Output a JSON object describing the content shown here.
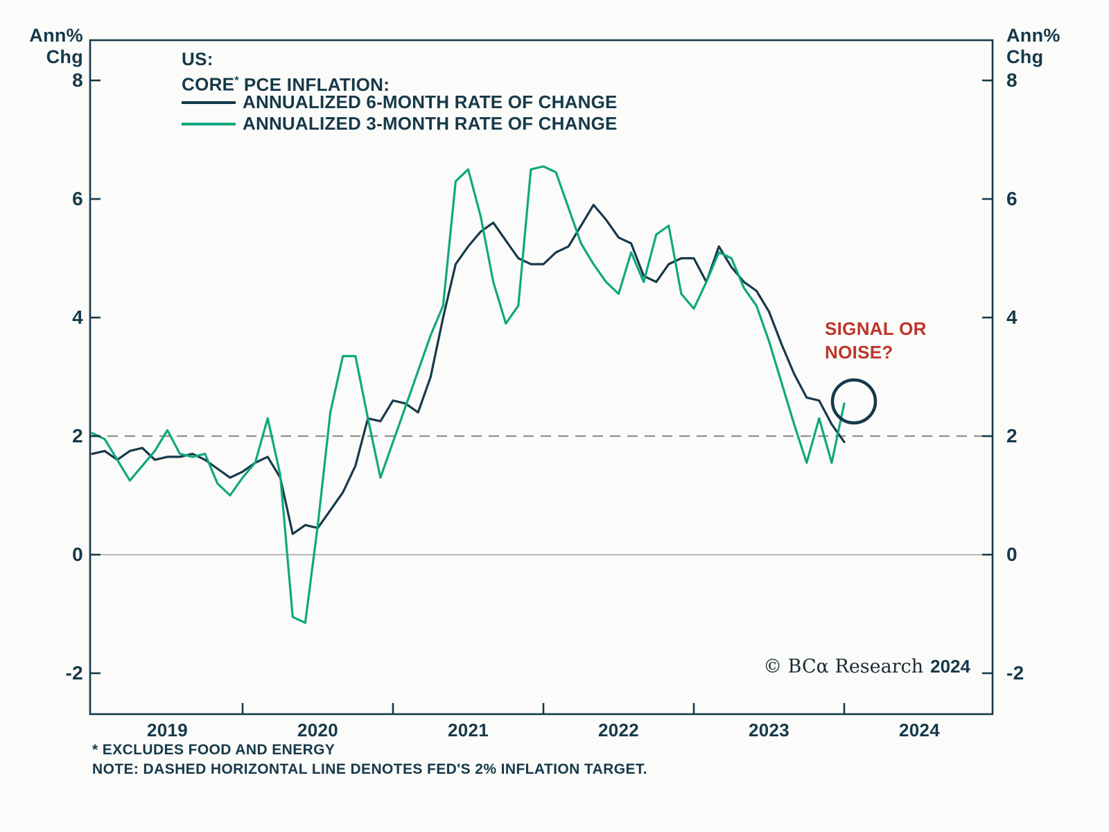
{
  "axis": {
    "unit_line1": "Ann%",
    "unit_line2": "Chg"
  },
  "legend": {
    "title_line1": "US:",
    "title_core": "CORE",
    "title_asterisk": "*",
    "title_rest": "PCE INFLATION:",
    "series1_label": "ANNUALIZED 6-MONTH RATE OF CHANGE",
    "series2_label": "ANNUALIZED 3-MONTH RATE OF CHANGE"
  },
  "annotation": {
    "text": "SIGNAL OR NOISE?",
    "color": "#BE342B"
  },
  "branding": {
    "copyright": "© BCα Research",
    "year": "2024"
  },
  "footnotes": {
    "line1": "* EXCLUDES FOOD AND ENERGY",
    "line2": "NOTE: DASHED HORIZONTAL LINE DENOTES FED'S 2% INFLATION TARGET."
  },
  "chart_data": {
    "type": "line",
    "title": "US: CORE PCE INFLATION",
    "x_start": "2019-01",
    "x_frequency": "monthly",
    "x_tick_years": [
      "2019",
      "2020",
      "2021",
      "2022",
      "2023",
      "2024"
    ],
    "x_year_boundary_month_indices": [
      12,
      24,
      36,
      48,
      60
    ],
    "yticks": [
      -2,
      0,
      2,
      4,
      6,
      8
    ],
    "ylim": [
      -2.7,
      8.7
    ],
    "y_unit": "Ann% Chg",
    "grid": false,
    "legend_position": "top-left-inside",
    "reference_lines": [
      {
        "y": 2,
        "style": "dashed",
        "meaning": "Fed's 2% inflation target"
      },
      {
        "y": 0,
        "style": "solid",
        "meaning": "zero baseline"
      }
    ],
    "series": [
      {
        "name": "ANNUALIZED 6-MONTH RATE OF CHANGE",
        "color": "#16394A",
        "values": [
          1.7,
          1.75,
          1.6,
          1.75,
          1.8,
          1.6,
          1.65,
          1.65,
          1.7,
          1.6,
          1.45,
          1.3,
          1.4,
          1.55,
          1.65,
          1.3,
          0.35,
          0.5,
          0.45,
          0.75,
          1.05,
          1.5,
          2.3,
          2.25,
          2.6,
          2.55,
          2.4,
          3.0,
          4.0,
          4.9,
          5.2,
          5.45,
          5.6,
          5.3,
          5.0,
          4.9,
          4.9,
          5.1,
          5.2,
          5.55,
          5.9,
          5.65,
          5.35,
          5.25,
          4.7,
          4.6,
          4.9,
          5.0,
          5.0,
          4.6,
          5.2,
          4.85,
          4.6,
          4.45,
          4.1,
          3.55,
          3.05,
          2.65,
          2.6,
          2.2,
          1.9
        ]
      },
      {
        "name": "ANNUALIZED 3-MONTH RATE OF CHANGE",
        "color": "#0FA87D",
        "values": [
          2.05,
          1.95,
          1.6,
          1.25,
          1.5,
          1.75,
          2.1,
          1.7,
          1.65,
          1.7,
          1.2,
          1.0,
          1.3,
          1.55,
          2.3,
          1.35,
          -1.05,
          -1.15,
          0.5,
          2.4,
          3.35,
          3.35,
          2.3,
          1.3,
          1.9,
          2.5,
          3.1,
          3.7,
          4.2,
          6.3,
          6.5,
          5.7,
          4.6,
          3.9,
          4.2,
          6.5,
          6.55,
          6.45,
          5.85,
          5.25,
          4.9,
          4.6,
          4.4,
          5.1,
          4.6,
          5.4,
          5.55,
          4.4,
          4.15,
          4.6,
          5.1,
          5.0,
          4.5,
          4.2,
          3.6,
          2.9,
          2.2,
          1.55,
          2.3,
          1.55,
          2.55
        ]
      }
    ],
    "annotation_circle": {
      "on_series": "ANNUALIZED 3-MONTH RATE OF CHANGE",
      "at": "last-point",
      "value": 2.55
    },
    "colors": {
      "navy": "#16394A",
      "green": "#0FA87D",
      "red": "#BE342B",
      "frame": "#16394A",
      "dashed_line": "#8F8F8F",
      "zero_line": "#ADADAD",
      "background": "#FBFBF9"
    }
  }
}
